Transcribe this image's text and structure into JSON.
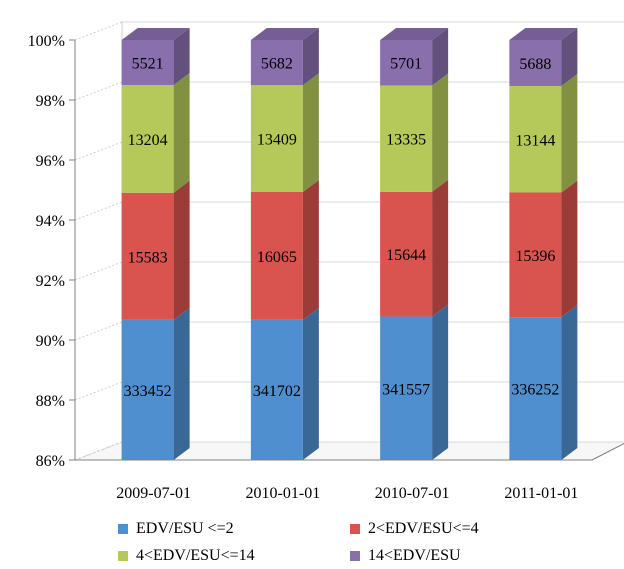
{
  "chart_data": {
    "type": "bar",
    "stacked": "percent",
    "three_d": true,
    "title": "",
    "xlabel": "",
    "ylabel": "",
    "ylim": [
      86,
      100
    ],
    "y_ticks": [
      "86%",
      "88%",
      "90%",
      "92%",
      "94%",
      "96%",
      "98%",
      "100%"
    ],
    "grid": true,
    "legend_position": "bottom",
    "categories": [
      "2009-07-01",
      "2010-01-01",
      "2010-07-01",
      "2011-01-01"
    ],
    "series": [
      {
        "name": "EDV/ESU <=2",
        "color": "#4f8fd0",
        "values": [
          333452,
          341702,
          341557,
          336252
        ]
      },
      {
        "name": "2<EDV/ESU<=4",
        "color": "#d9534f",
        "values": [
          15583,
          16065,
          15644,
          15396
        ]
      },
      {
        "name": "4<EDV/ESU<=14",
        "color": "#b5c95a",
        "values": [
          13204,
          13409,
          13335,
          13144
        ]
      },
      {
        "name": "14<EDV/ESU",
        "color": "#8a6fad",
        "values": [
          5521,
          5682,
          5701,
          5688
        ]
      }
    ]
  }
}
